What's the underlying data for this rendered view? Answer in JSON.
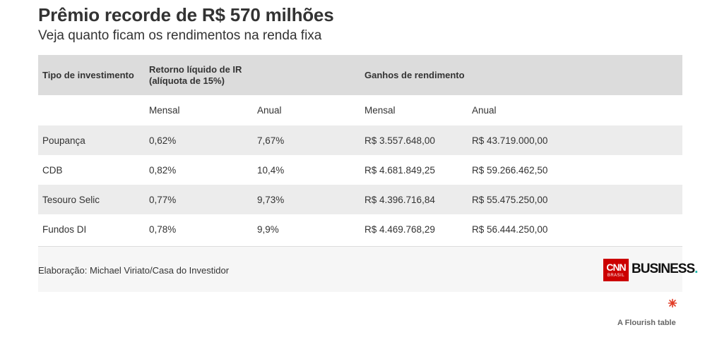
{
  "header": {
    "title": "Prêmio recorde de R$ 570 milhões",
    "subtitle": "Veja quanto ficam os rendimentos na renda fixa"
  },
  "chart_data": {
    "type": "table",
    "title": "Prêmio recorde de R$ 570 milhões",
    "subtitle": "Veja quanto ficam os rendimentos na renda fixa",
    "columns_group": [
      "Tipo de investimento",
      "Retorno líquido de IR (alíquota de 15%)",
      "Ganhos de rendimento"
    ],
    "group_header": {
      "type": "Tipo de investimento",
      "return_line1": "Retorno líquido de IR",
      "return_line2": "(alíquota de 15%)",
      "gains": "Ganhos de rendimento"
    },
    "sub_header": [
      "",
      "Mensal",
      "Anual",
      "Mensal",
      "Anual"
    ],
    "rows": [
      [
        "Poupança",
        "0,62%",
        "7,67%",
        "R$ 3.557.648,00",
        "R$ 43.719.000,00"
      ],
      [
        "CDB",
        "0,82%",
        "10,4%",
        "R$ 4.681.849,25",
        "R$ 59.266.462,50"
      ],
      [
        "Tesouro Selic",
        "0,77%",
        "9,73%",
        "R$ 4.396.716,84",
        "R$ 55.475.250,00"
      ],
      [
        "Fundos DI",
        "0,78%",
        "9,9%",
        "R$ 4.469.768,29",
        "R$ 56.444.250,00"
      ]
    ]
  },
  "footer": {
    "source": "Elaboração: Michael Viriato/Casa do Investidor",
    "logo_cnn": "CNN",
    "logo_brasil": "BRASIL",
    "logo_business": "BUSINESS",
    "logo_dot": "."
  },
  "flourish": {
    "label": "A Flourish table",
    "icon": "flourish-asterisk-icon",
    "color": "#e23d28"
  }
}
